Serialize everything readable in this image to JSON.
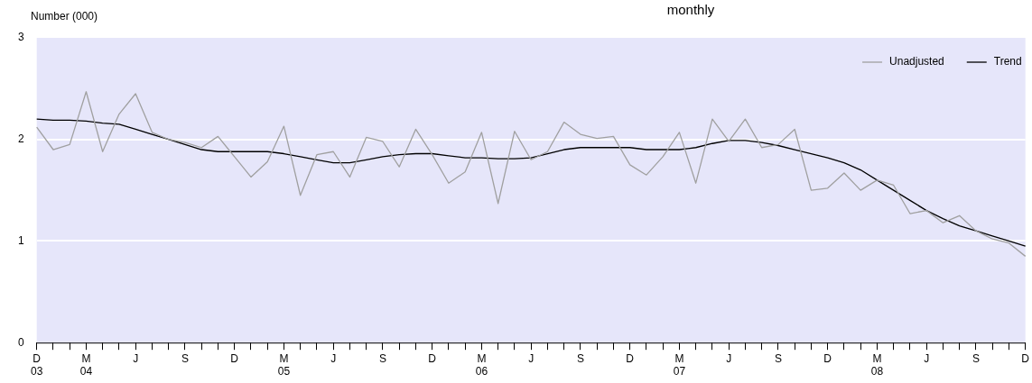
{
  "chart_data": {
    "type": "line",
    "title": "monthly",
    "ylabel": "Number (000)",
    "categories": [
      "D\n03",
      null,
      null,
      "M\n04",
      null,
      null,
      "J",
      null,
      null,
      "S",
      null,
      null,
      "D",
      null,
      null,
      "M\n05",
      null,
      null,
      "J",
      null,
      null,
      "S",
      null,
      null,
      "D",
      null,
      null,
      "M\n06",
      null,
      null,
      "J",
      null,
      null,
      "S",
      null,
      null,
      "D",
      null,
      null,
      "M\n07",
      null,
      null,
      "J",
      null,
      null,
      "S",
      null,
      null,
      "D",
      null,
      null,
      "M\n08",
      null,
      null,
      "J",
      null,
      null,
      "S",
      null,
      null,
      "D"
    ],
    "series": [
      {
        "name": "Unadjusted",
        "color": "#a0a0a0",
        "values": [
          2.12,
          1.9,
          1.95,
          2.47,
          1.88,
          2.25,
          2.45,
          2.07,
          2.0,
          1.97,
          1.92,
          2.03,
          1.83,
          1.63,
          1.78,
          2.13,
          1.45,
          1.85,
          1.88,
          1.63,
          2.02,
          1.98,
          1.73,
          2.1,
          1.85,
          1.57,
          1.68,
          2.07,
          1.37,
          2.08,
          1.8,
          1.88,
          2.17,
          2.05,
          2.01,
          2.03,
          1.75,
          1.65,
          1.83,
          2.07,
          1.57,
          2.2,
          1.98,
          2.2,
          1.92,
          1.95,
          2.1,
          1.5,
          1.52,
          1.67,
          1.5,
          1.6,
          1.55,
          1.27,
          1.3,
          1.18,
          1.25,
          1.1,
          1.02,
          0.98,
          0.85
        ]
      },
      {
        "name": "Trend",
        "color": "#000000",
        "values": [
          2.2,
          2.19,
          2.19,
          2.18,
          2.16,
          2.15,
          2.1,
          2.05,
          2.0,
          1.95,
          1.9,
          1.88,
          1.88,
          1.88,
          1.88,
          1.86,
          1.83,
          1.8,
          1.77,
          1.77,
          1.8,
          1.83,
          1.85,
          1.86,
          1.86,
          1.84,
          1.82,
          1.82,
          1.81,
          1.81,
          1.82,
          1.86,
          1.9,
          1.92,
          1.92,
          1.92,
          1.92,
          1.9,
          1.9,
          1.9,
          1.92,
          1.96,
          1.99,
          1.99,
          1.97,
          1.94,
          1.9,
          1.86,
          1.82,
          1.77,
          1.7,
          1.6,
          1.5,
          1.4,
          1.3,
          1.22,
          1.15,
          1.1,
          1.05,
          1.0,
          0.95
        ]
      }
    ],
    "ylim": [
      0,
      3
    ],
    "yticks": [
      0,
      1,
      2,
      3
    ],
    "grid": "y",
    "legend": "top right",
    "marker": "none",
    "line_style": "solid"
  }
}
